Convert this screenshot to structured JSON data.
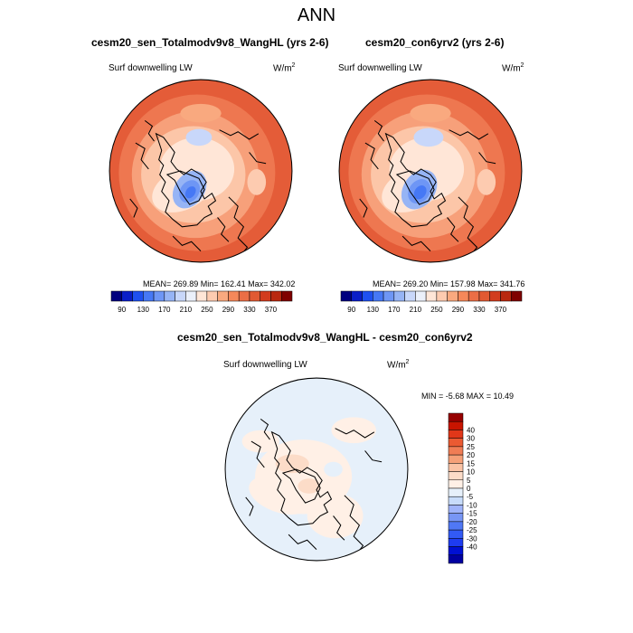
{
  "figure": {
    "title": "ANN"
  },
  "panels": [
    {
      "title": "cesm20_sen_Totalmodv9v8_WangHL (yrs 2-6)",
      "variable": "Surf downwelling LW",
      "units_base": "W/m",
      "units_sup": "2",
      "stats": "MEAN= 269.89  Min= 162.41  Max= 342.02",
      "map_summary": {
        "mean": 269.89,
        "min": 162.41,
        "max": 342.02
      }
    },
    {
      "title": "cesm20_con6yrv2 (yrs 2-6)",
      "variable": "Surf downwelling LW",
      "units_base": "W/m",
      "units_sup": "2",
      "stats": "MEAN= 269.20  Min= 157.98  Max= 341.76",
      "map_summary": {
        "mean": 269.2,
        "min": 157.98,
        "max": 341.76
      }
    },
    {
      "title": "cesm20_sen_Totalmodv9v8_WangHL - cesm20_con6yrv2",
      "variable": "Surf downwelling LW",
      "units_base": "W/m",
      "units_sup": "2",
      "stats": "MIN =  -5.68 MAX =  10.49",
      "map_summary": {
        "min": -5.68,
        "max": 10.49
      }
    }
  ],
  "colorbar_abs": {
    "colors": [
      "#00007f",
      "#0a1ec8",
      "#1e50f0",
      "#4678f5",
      "#6e96f5",
      "#96b4f5",
      "#c8d7fa",
      "#ebf0fa",
      "#ffe6d7",
      "#fdcbb0",
      "#f9a97f",
      "#f5885a",
      "#eb6e46",
      "#e15a32",
      "#d23c1e",
      "#b9280f",
      "#7f0000"
    ],
    "labels": [
      "90",
      "130",
      "170",
      "210",
      "250",
      "290",
      "330",
      "370"
    ]
  },
  "colorbar_diff": {
    "colors": [
      "#0000a0",
      "#0010d2",
      "#1e3cf0",
      "#325af5",
      "#5078f5",
      "#7896f5",
      "#a0b4fa",
      "#c8dcfa",
      "#e6f0fa",
      "#fff0e6",
      "#fcdcc8",
      "#fac3a5",
      "#f5a078",
      "#f07d55",
      "#eb5a32",
      "#e13719",
      "#c81400",
      "#960000"
    ],
    "labels": [
      "40",
      "30",
      "25",
      "20",
      "15",
      "10",
      "5",
      "0",
      "-5",
      "-10",
      "-15",
      "-20",
      "-25",
      "-30",
      "-40"
    ]
  }
}
